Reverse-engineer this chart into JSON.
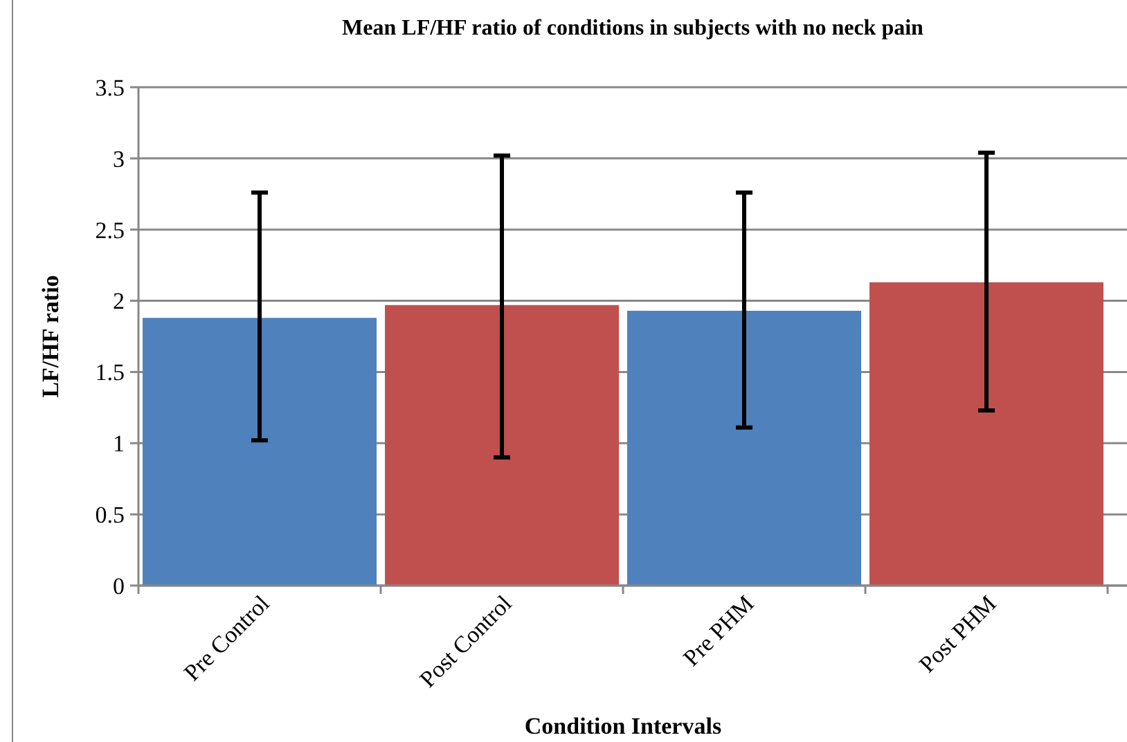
{
  "chart_data": {
    "type": "bar",
    "title": "Mean LF/HF ratio of conditions in subjects with no neck pain",
    "xlabel": "Condition Intervals",
    "ylabel": "LF/HF ratio",
    "categories": [
      "Pre Control",
      "Post Control",
      "Pre PHM",
      "Post PHM"
    ],
    "values": [
      1.88,
      1.97,
      1.93,
      2.13
    ],
    "colors": [
      "#4f81bd",
      "#c0504d",
      "#4f81bd",
      "#c0504d"
    ],
    "errors": [
      [
        1.02,
        2.76
      ],
      [
        0.9,
        3.02
      ],
      [
        1.11,
        2.76
      ],
      [
        1.23,
        3.04
      ]
    ],
    "ylim": [
      0,
      3.5
    ],
    "yticks": [
      0,
      0.5,
      1,
      1.5,
      2,
      2.5,
      3,
      3.5
    ],
    "grid": "y"
  }
}
